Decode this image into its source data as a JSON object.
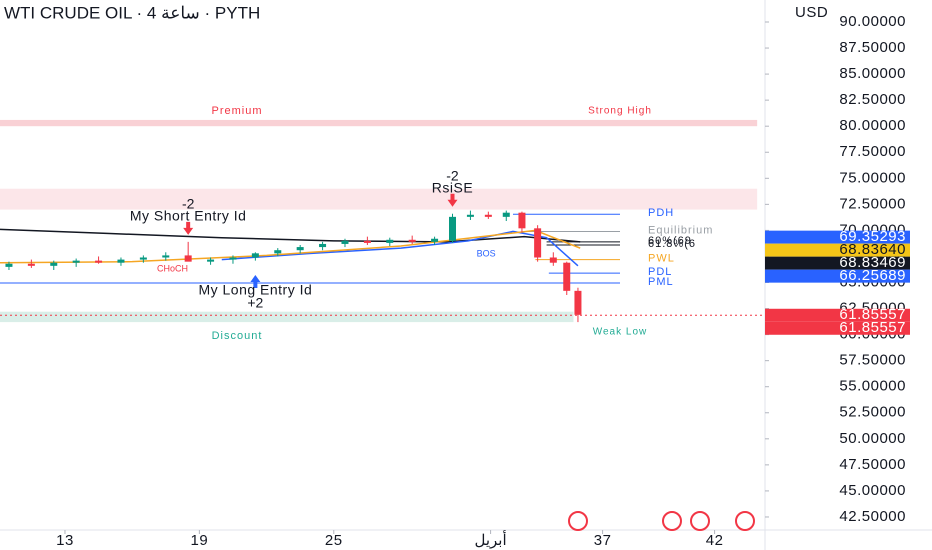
{
  "chart_data": {
    "type": "candlestick",
    "title": "WTI CRUDE OIL · 4 ساعة · PYTH",
    "y_axis_label": "USD",
    "xlim": [
      10.1,
      44.25
    ],
    "xticks": [
      13,
      19,
      25,
      {
        "value": 32,
        "label": "أبريل"
      },
      37,
      42
    ],
    "ylim": [
      41.25,
      92.11
    ],
    "yticks": [
      {
        "value": 42.5,
        "label": "42.50000"
      },
      {
        "value": 45,
        "label": "45.00000"
      },
      {
        "value": 47.5,
        "label": "47.50000"
      },
      {
        "value": 50,
        "label": "50.00000"
      },
      {
        "value": 52.5,
        "label": "52.50000"
      },
      {
        "value": 55,
        "label": "55.00000"
      },
      {
        "value": 57.5,
        "label": "57.50000"
      },
      {
        "value": 60,
        "label": "60.00000"
      },
      {
        "value": 62.5,
        "label": "62.50000"
      },
      {
        "value": 65,
        "label": "65.00000"
      },
      {
        "value": 67.5,
        "label": "67.50000"
      },
      {
        "value": 70,
        "label": "70.00000"
      },
      {
        "value": 72.5,
        "label": "72.50000"
      },
      {
        "value": 75,
        "label": "75.00000"
      },
      {
        "value": 77.5,
        "label": "77.50000"
      },
      {
        "value": 80,
        "label": "80.00000"
      },
      {
        "value": 82.5,
        "label": "82.50000"
      },
      {
        "value": 85,
        "label": "85.00000"
      },
      {
        "value": 87.5,
        "label": "87.50000"
      },
      {
        "value": 90,
        "label": "90.00000"
      }
    ],
    "up_color": "#089981",
    "down_color": "#f23645",
    "x": [
      10.5,
      11.5,
      12.5,
      13.5,
      14.5,
      15.5,
      16.5,
      17.5,
      18.5,
      19.5,
      20.5,
      21.5,
      22.5,
      23.5,
      24.5,
      25.5,
      26.5,
      27.5,
      28.5,
      29.5,
      30.3,
      31.1,
      31.9,
      32.7,
      33.4,
      34.1,
      34.8,
      35.4,
      35.9
    ],
    "open": [
      66.5,
      66.8,
      66.6,
      66.9,
      67.1,
      66.9,
      67.2,
      67.4,
      67.6,
      67.0,
      67.2,
      67.4,
      67.8,
      68.1,
      68.4,
      68.7,
      69.0,
      68.8,
      69.1,
      68.9,
      69.0,
      71.3,
      71.5,
      71.3,
      71.7,
      70.2,
      67.4,
      66.9,
      64.2
    ],
    "high": [
      67.0,
      67.2,
      67.1,
      67.3,
      67.5,
      67.4,
      67.6,
      67.9,
      68.9,
      67.4,
      67.6,
      67.9,
      68.3,
      68.6,
      68.9,
      69.2,
      69.4,
      69.3,
      69.5,
      69.4,
      71.6,
      71.9,
      71.8,
      71.9,
      71.8,
      70.5,
      67.9,
      67.0,
      64.5
    ],
    "low": [
      66.2,
      66.4,
      66.2,
      66.5,
      66.8,
      66.6,
      66.9,
      67.1,
      67.3,
      66.7,
      66.8,
      67.1,
      67.5,
      67.8,
      68.1,
      68.4,
      68.6,
      68.5,
      68.7,
      68.6,
      68.8,
      71.0,
      71.1,
      70.9,
      69.8,
      67.0,
      66.6,
      63.8,
      61.2
    ],
    "close": [
      66.8,
      66.6,
      66.9,
      67.1,
      66.9,
      67.2,
      67.4,
      67.6,
      67.0,
      67.2,
      67.4,
      67.8,
      68.1,
      68.4,
      68.7,
      69.0,
      68.8,
      69.1,
      68.9,
      69.2,
      71.3,
      71.5,
      71.3,
      71.7,
      70.2,
      67.4,
      66.9,
      64.2,
      61.9
    ],
    "zones": [
      {
        "name": "Premium",
        "label": "Strong High",
        "range": [
          80.0,
          80.6
        ],
        "xrange": [
          10.1,
          43.9
        ],
        "color": "#f7c5cb"
      },
      {
        "range": [
          72.0,
          74.0
        ],
        "xrange": [
          10.1,
          43.9
        ],
        "color": "#fbe0e3"
      },
      {
        "name": "Discount",
        "label": "Weak Low",
        "range": [
          61.2,
          62.2
        ],
        "xrange": [
          10.1,
          35.7
        ],
        "color": "#cfeae2"
      }
    ],
    "levels": [
      {
        "name": "PDH",
        "value": 71.55,
        "from": 33.0,
        "color": "#2962ff"
      },
      {
        "name": "Equilibrium",
        "value": 69.9,
        "from": 33.5,
        "color": "#9aa0a6"
      },
      {
        "name": "60%(69",
        "value": 68.9,
        "from": 34.5,
        "color": "#131722"
      },
      {
        "name": "61.8%(6",
        "value": 68.6,
        "from": 34.5,
        "color": "#131722"
      },
      {
        "name": "PWL",
        "value": 67.2,
        "from": 34.0,
        "color": "#f5a623"
      },
      {
        "name": "PDL",
        "value": 65.9,
        "from": 34.6,
        "color": "#2962ff"
      },
      {
        "name": "PML",
        "value": 64.95,
        "from": 10.1,
        "color": "#2962ff"
      }
    ],
    "ma_lines": [
      {
        "color": "#131722",
        "x": [
          10.1,
          15,
          20,
          25,
          30,
          33.5,
          36
        ],
        "values": [
          70.1,
          69.7,
          69.3,
          69.0,
          68.9,
          69.4,
          68.9
        ]
      },
      {
        "color": "#2962ff",
        "x": [
          20,
          24,
          28,
          31,
          33,
          34.5,
          35.9
        ],
        "values": [
          67.2,
          67.8,
          68.3,
          69.0,
          69.9,
          69.3,
          66.6
        ]
      },
      {
        "color": "#f5a623",
        "x": [
          10.1,
          16,
          22,
          28,
          32,
          34,
          36
        ],
        "values": [
          66.9,
          67.0,
          67.6,
          68.5,
          69.5,
          70.0,
          68.3
        ]
      }
    ],
    "signals": [
      {
        "text": "My Short Entry Id",
        "qty": -2,
        "x": 18.5,
        "price": 69.0,
        "side": "sell"
      },
      {
        "text": "My Long Entry Id",
        "qty": {
          "value": 2,
          "label": "+2"
        },
        "x": 21.5,
        "price": 66.3,
        "side": "buy"
      },
      {
        "text": "RsiSE",
        "qty": -2,
        "x": 30.3,
        "price": 71.7,
        "side": "sell"
      }
    ],
    "markers": [
      {
        "text": "CHoCH",
        "x": 17.8,
        "price": 66.3,
        "color": "#f23645"
      },
      {
        "text": "BOS",
        "x": 31.8,
        "price": 67.7,
        "color": "#2962ff"
      }
    ],
    "price_tags": [
      {
        "value": 69.35293,
        "color": "#2962ff"
      },
      {
        "value": 68.8364,
        "label": "68.83640",
        "color": "#f5c518"
      },
      {
        "value": 68.83469,
        "color": "#131722"
      },
      {
        "value": 66.25689,
        "color": "#2962ff"
      },
      {
        "value": 61.85557,
        "color": "#f23645"
      },
      {
        "value": 61.85557,
        "color": "#f23645"
      }
    ]
  }
}
